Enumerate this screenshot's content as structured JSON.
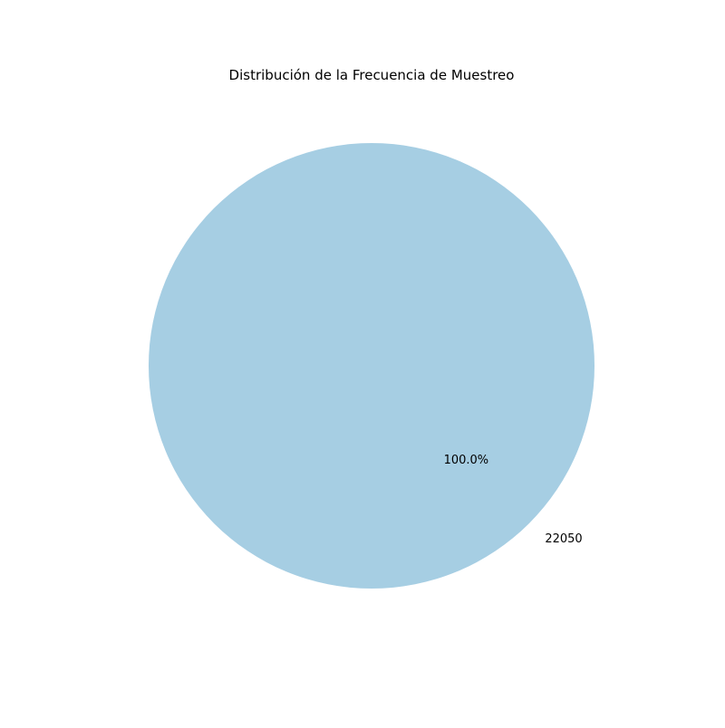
{
  "chart_data": {
    "type": "pie",
    "title": "Distribución de la Frecuencia de Muestreo",
    "slices": [
      {
        "label": "22050",
        "value": 100.0,
        "percent_label": "100.0%",
        "color": "#a6cee3"
      }
    ],
    "legend": "none"
  }
}
